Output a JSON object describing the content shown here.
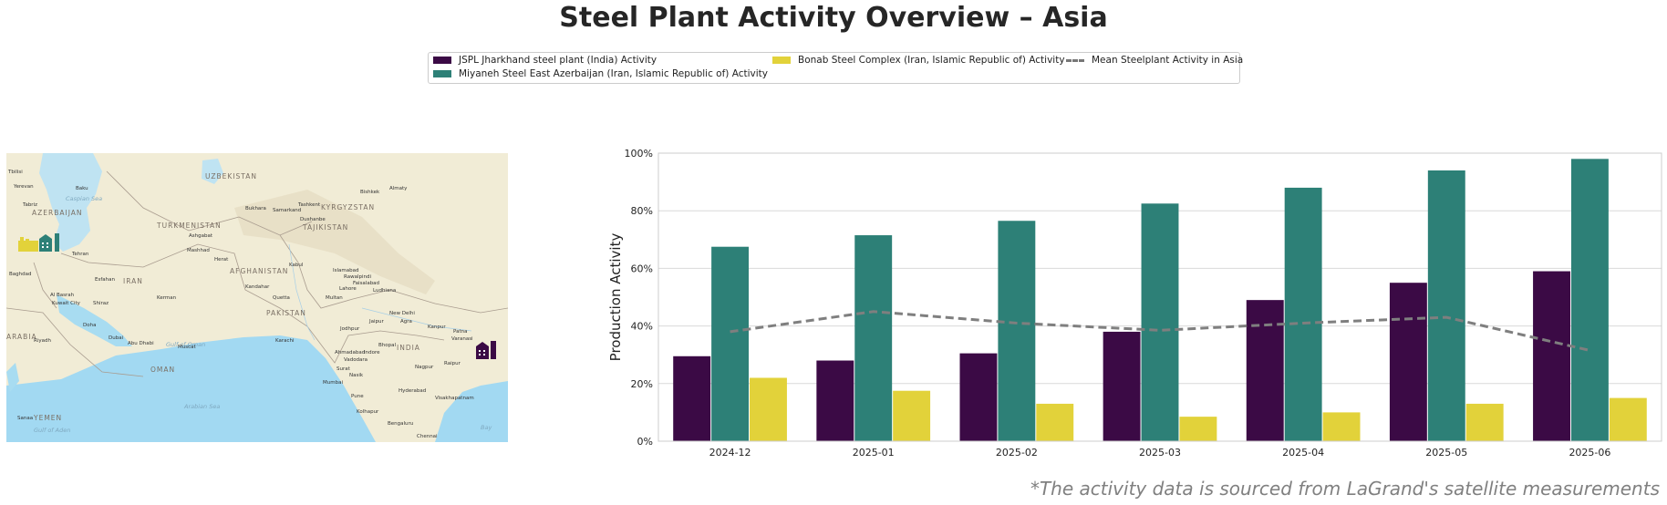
{
  "title": "Steel Plant Activity Overview – Asia",
  "footnote": "*The activity data is sourced from LaGrand's satellite measurements",
  "legend": {
    "items": [
      {
        "label": "JSPL Jharkhand steel plant (India) Activity",
        "color": "#3b0a45",
        "kind": "bar"
      },
      {
        "label": "Miyaneh Steel East Azerbaijan (Iran, Islamic Republic of) Activity",
        "color": "#2d8077",
        "kind": "bar"
      },
      {
        "label": "Bonab Steel Complex (Iran, Islamic Republic of) Activity",
        "color": "#e2d23a",
        "kind": "bar"
      },
      {
        "label": "Mean Steelplant Activity in Asia",
        "color": "#7f7f7f",
        "kind": "dashed-line"
      }
    ]
  },
  "map": {
    "labels": {
      "caspian": "Caspian Sea",
      "turkmenistan": "TURKMENISTAN",
      "uzbekistan": "UZBEKISTAN",
      "kyrgyzstan": "KYRGYZSTAN",
      "tajikistan": "TAJIKISTAN",
      "afghanistan": "AFGHANISTAN",
      "iran": "IRAN",
      "pakistan": "PAKISTAN",
      "india": "INDIA",
      "oman": "OMAN",
      "yemen": "YEMEN",
      "arabia": "ARABIA",
      "arabian_sea": "Arabian Sea",
      "bay": "Bay",
      "gulf_of_aden": "Gulf of Aden",
      "gulf_of_oman": "Gulf of Oman",
      "azerbaijan": "AZERBAIJAN",
      "tehran": "Tehran",
      "baku": "Baku",
      "mashhad": "Mashhad",
      "kabul": "Kabul",
      "lahore": "Lahore",
      "new_delhi": "New Delhi",
      "karachi": "Karachi",
      "mumbai": "Mumbai",
      "riyadh": "Riyadh",
      "baghdad": "Baghdad",
      "muscat": "Muscat",
      "hyderabad": "Hyderabad",
      "bengaluru": "Bengaluru",
      "isfahan": "Esfahan",
      "ahmadabad": "Ahmadabad",
      "nagpur": "Nagpur",
      "dubai": "Dubai",
      "abu_dhabi": "Abu Dhabi",
      "tashkent": "Tashkent",
      "bishkek": "Bishkek",
      "almaty": "Almaty",
      "ashgabat": "Ashgabat",
      "islamabad": "Islamabad",
      "rawalpindi": "Rawalpindi",
      "multan": "Multan",
      "quetta": "Quetta",
      "kandahar": "Kandahar",
      "herat": "Herat",
      "shiraz": "Shiraz",
      "kerman": "Kerman",
      "kuwait_city": "Kuwait City",
      "basrah": "Al Basrah",
      "doha": "Doha",
      "patna": "Patna",
      "jaipur": "Jaipur",
      "agra": "Agra",
      "kanpur": "Kanpur",
      "varanasi": "Varanasi",
      "vadodara": "Vadodara",
      "surat": "Surat",
      "pune": "Pune",
      "nashik": "Nasik",
      "visakhapatnam": "Visakhapatnam",
      "chennai": "Chennai",
      "raipur": "Raipur",
      "bhopal": "Bhopal",
      "indore": "Indore",
      "sanaa": "Sanaa",
      "tabriz": "Tabriz",
      "jodhpur": "Jodhpur",
      "faisalabad": "Faisalabad",
      "ludhiana": "Ludhiana",
      "kolhapur": "Kolhapur",
      "dushanbe": "Dushanbe",
      "samarkand": "Samarkand",
      "bukhara": "Bukhara",
      "tbilisi": "Tbilisi",
      "yerevan": "Yerevan"
    },
    "markers": [
      {
        "name": "Bonab Steel Complex",
        "color": "#e2d23a"
      },
      {
        "name": "Miyaneh Steel East Azerbaijan",
        "color": "#2d8077"
      },
      {
        "name": "JSPL Jharkhand steel plant",
        "color": "#3b0a45"
      }
    ]
  },
  "chart_data": {
    "type": "bar",
    "categories": [
      "2024-12",
      "2025-01",
      "2025-02",
      "2025-03",
      "2025-04",
      "2025-05",
      "2025-06"
    ],
    "series": [
      {
        "name": "JSPL Jharkhand steel plant (India) Activity",
        "color": "#3b0a45",
        "values": [
          29.5,
          28,
          30.5,
          38,
          49,
          55,
          59
        ]
      },
      {
        "name": "Miyaneh Steel East Azerbaijan (Iran, Islamic Republic of) Activity",
        "color": "#2d8077",
        "values": [
          67.5,
          71.5,
          76.5,
          82.5,
          88,
          94,
          98
        ]
      },
      {
        "name": "Bonab Steel Complex (Iran, Islamic Republic of) Activity",
        "color": "#e2d23a",
        "values": [
          22,
          17.5,
          13,
          8.5,
          10,
          13,
          15
        ]
      }
    ],
    "line": {
      "name": "Mean Steelplant Activity in Asia",
      "color": "#7f7f7f",
      "style": "dashed",
      "values": [
        38,
        45,
        41,
        38.5,
        41,
        43,
        31.5
      ]
    },
    "ylabel": "Production Activity",
    "xlabel": "",
    "ylim": [
      0,
      100
    ],
    "yticks": [
      0,
      20,
      40,
      60,
      80,
      100
    ],
    "ytick_labels": [
      "0%",
      "20%",
      "40%",
      "60%",
      "80%",
      "100%"
    ],
    "grid": true,
    "legend_position": "top-center"
  }
}
